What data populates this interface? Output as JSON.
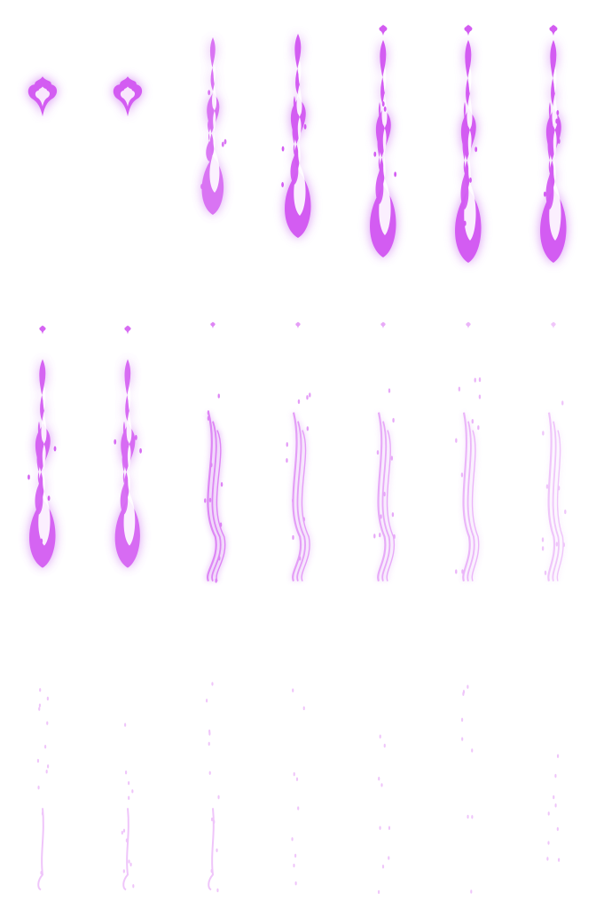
{
  "sheet": {
    "columns": 7,
    "rows": 3,
    "frame_count": 21,
    "accent_color": "#d35cf2",
    "highlight_color": "#ffffff",
    "glow_color": "#cf7bf1"
  },
  "frames": [
    {
      "stage": "ember",
      "intensity": 1.0
    },
    {
      "stage": "ember",
      "intensity": 1.0
    },
    {
      "stage": "rise",
      "intensity": 0.85
    },
    {
      "stage": "full-flame",
      "intensity": 1.0
    },
    {
      "stage": "full-flame",
      "intensity": 1.0
    },
    {
      "stage": "full-flame",
      "intensity": 1.0
    },
    {
      "stage": "full-flame",
      "intensity": 1.0
    },
    {
      "stage": "full-flame",
      "intensity": 0.95
    },
    {
      "stage": "full-flame",
      "intensity": 0.9
    },
    {
      "stage": "fading",
      "intensity": 0.75
    },
    {
      "stage": "fading",
      "intensity": 0.6
    },
    {
      "stage": "fading",
      "intensity": 0.52
    },
    {
      "stage": "fading",
      "intensity": 0.45
    },
    {
      "stage": "fading",
      "intensity": 0.35
    },
    {
      "stage": "wisps",
      "intensity": 0.32
    },
    {
      "stage": "wisps",
      "intensity": 0.3
    },
    {
      "stage": "wisps",
      "intensity": 0.28
    },
    {
      "stage": "sparks",
      "intensity": 0.22
    },
    {
      "stage": "sparks",
      "intensity": 0.18
    },
    {
      "stage": "sparks",
      "intensity": 0.12
    },
    {
      "stage": "sparks",
      "intensity": 0.07
    }
  ]
}
